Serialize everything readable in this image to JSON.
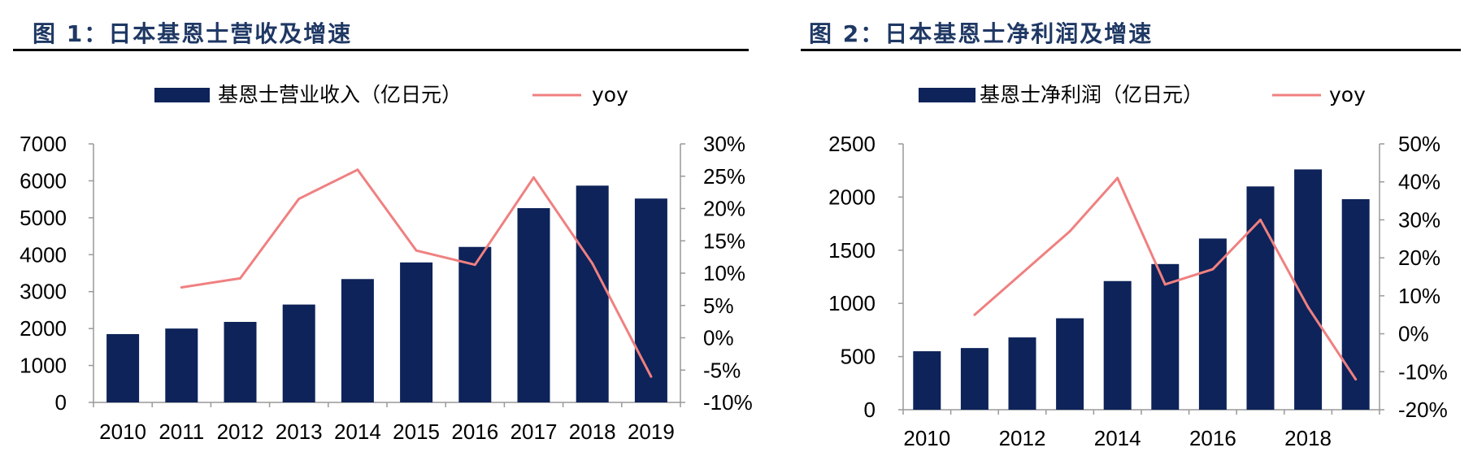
{
  "charts": [
    {
      "title": "图 1：日本基恩士营收及增速",
      "chart_data": {
        "type": "bar",
        "categories": [
          "2010",
          "2011",
          "2012",
          "2013",
          "2014",
          "2015",
          "2016",
          "2017",
          "2018",
          "2019"
        ],
        "x_tick_labels": [
          "2010",
          "2011",
          "2012",
          "2013",
          "2014",
          "2015",
          "2016",
          "2017",
          "2018",
          "2019"
        ],
        "series": [
          {
            "name": "基恩士营业收入（亿日元）",
            "type": "bar",
            "axis": "left",
            "values": [
              1850,
              2000,
              2180,
              2650,
              3340,
              3790,
              4210,
              5260,
              5870,
              5520
            ]
          },
          {
            "name": "yoy",
            "type": "line",
            "axis": "right",
            "values": [
              null,
              0.078,
              0.092,
              0.215,
              0.26,
              0.135,
              0.113,
              0.248,
              0.115,
              -0.06
            ]
          }
        ],
        "left_axis": {
          "min": 0,
          "max": 7000,
          "ticks": [
            0,
            1000,
            2000,
            3000,
            4000,
            5000,
            6000,
            7000
          ],
          "tick_labels": [
            "0",
            "1000",
            "2000",
            "3000",
            "4000",
            "5000",
            "6000",
            "7000"
          ]
        },
        "right_axis": {
          "min": -0.1,
          "max": 0.3,
          "ticks": [
            -0.1,
            -0.05,
            0,
            0.05,
            0.1,
            0.15,
            0.2,
            0.25,
            0.3
          ],
          "tick_labels": [
            "-10%",
            "-5%",
            "0%",
            "5%",
            "10%",
            "15%",
            "20%",
            "25%",
            "30%"
          ]
        },
        "legend": "top",
        "grid": false
      }
    },
    {
      "title": "图 2：日本基恩士净利润及增速",
      "chart_data": {
        "type": "bar",
        "categories": [
          "2010",
          "2011",
          "2012",
          "2013",
          "2014",
          "2015",
          "2016",
          "2017",
          "2018",
          "2019"
        ],
        "x_tick_labels": [
          "2010",
          "",
          "2012",
          "",
          "2014",
          "",
          "2016",
          "",
          "2018",
          ""
        ],
        "series": [
          {
            "name": "基恩士净利润（亿日元）",
            "type": "bar",
            "axis": "left",
            "values": [
              550,
              580,
              680,
              860,
              1210,
              1370,
              1610,
              2100,
              2260,
              1980
            ]
          },
          {
            "name": "yoy",
            "type": "line",
            "axis": "right",
            "values": [
              null,
              0.05,
              0.16,
              0.27,
              0.41,
              0.13,
              0.17,
              0.3,
              0.07,
              -0.12
            ]
          }
        ],
        "left_axis": {
          "min": 0,
          "max": 2500,
          "ticks": [
            0,
            500,
            1000,
            1500,
            2000,
            2500
          ],
          "tick_labels": [
            "0",
            "500",
            "1000",
            "1500",
            "2000",
            "2500"
          ]
        },
        "right_axis": {
          "min": -0.2,
          "max": 0.5,
          "ticks": [
            -0.2,
            -0.1,
            0,
            0.1,
            0.2,
            0.3,
            0.4,
            0.5
          ],
          "tick_labels": [
            "-20%",
            "-10%",
            "0%",
            "10%",
            "20%",
            "30%",
            "40%",
            "50%"
          ]
        },
        "legend": "top",
        "grid": false
      }
    }
  ],
  "colors": {
    "bar": "#0d2359",
    "line": "#f08080",
    "title": "#1f3864",
    "axis": "#999999"
  }
}
